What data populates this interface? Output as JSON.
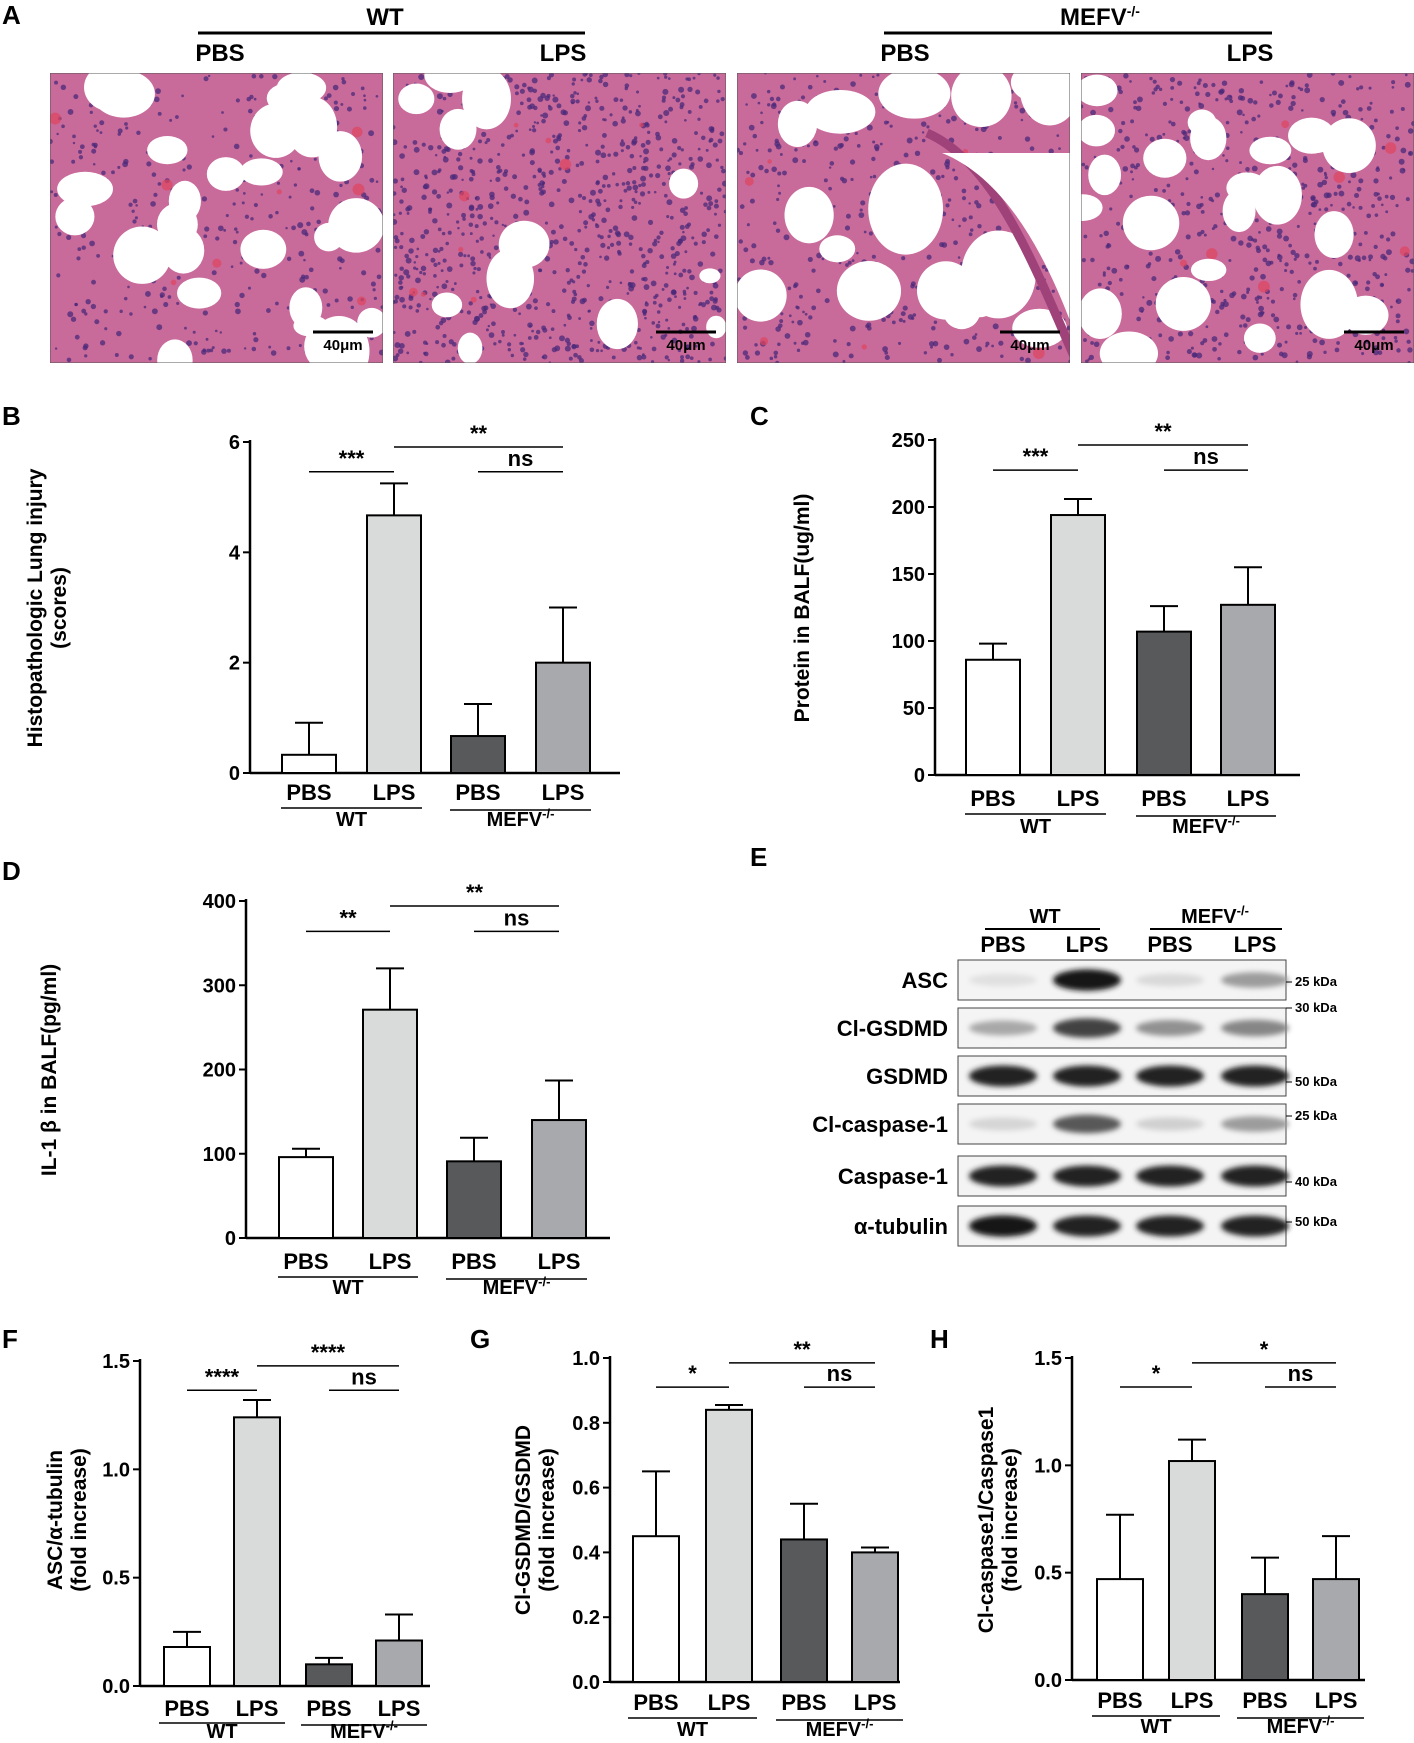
{
  "panel_a": {
    "label": "A",
    "group_left": "WT",
    "group_right": "MEFV",
    "group_right_sup": "-/-",
    "images": [
      {
        "label": "PBS",
        "scale": "40μm"
      },
      {
        "label": "LPS",
        "scale": "40μm"
      },
      {
        "label": "PBS",
        "scale": "40μm"
      },
      {
        "label": "LPS",
        "scale": "40μm"
      }
    ],
    "colors": {
      "tissue": "#c86a9a",
      "nuclei": "#4a2a7a",
      "airspace": "#ffffff",
      "blood": "#e0445c"
    }
  },
  "panel_e": {
    "label": "E",
    "group_left": "WT",
    "group_right": "MEFV",
    "group_right_sup": "-/-",
    "lanes": [
      "PBS",
      "LPS",
      "PBS",
      "LPS"
    ],
    "blots": [
      {
        "name": "ASC",
        "kda": "25 kDa",
        "intensity": [
          0.05,
          0.95,
          0.08,
          0.35
        ]
      },
      {
        "name": "Cl-GSDMD",
        "kda": "30 kDa",
        "intensity": [
          0.3,
          0.75,
          0.4,
          0.45
        ]
      },
      {
        "name": "GSDMD",
        "kda": "50 kDa",
        "intensity": [
          0.9,
          0.9,
          0.9,
          0.9
        ]
      },
      {
        "name": "Cl-caspase-1",
        "kda": "25 kDa",
        "intensity": [
          0.1,
          0.65,
          0.12,
          0.35
        ]
      },
      {
        "name": "Caspase-1",
        "kda": "40 kDa",
        "intensity": [
          0.9,
          0.9,
          0.9,
          0.9
        ]
      },
      {
        "name": "α-tubulin",
        "kda": "50 kDa",
        "intensity": [
          0.95,
          0.9,
          0.9,
          0.9
        ]
      }
    ]
  },
  "bar_colors": [
    "#ffffff",
    "#d9dbdb",
    "#58595b",
    "#a7a9ac"
  ],
  "chart_data": [
    {
      "panel": "B",
      "type": "bar",
      "ylabel": "Histopathologic Lung injury\n(scores)",
      "categories": [
        "PBS",
        "LPS",
        "PBS",
        "LPS"
      ],
      "groups": [
        "WT",
        "MEFV"
      ],
      "group_sup": "-/-",
      "values": [
        0.33,
        4.67,
        0.67,
        2.0
      ],
      "errors": [
        0.58,
        0.58,
        0.58,
        1.0
      ],
      "ylim": [
        0,
        6
      ],
      "yticks": [
        "0",
        "2",
        "4",
        "6"
      ],
      "significance": [
        {
          "from": 0,
          "to": 1,
          "label": "***"
        },
        {
          "from": 1,
          "to": 3,
          "label": "**"
        },
        {
          "from": 2,
          "to": 3,
          "label": "ns"
        }
      ]
    },
    {
      "panel": "C",
      "type": "bar",
      "ylabel": "Protein in BALF(ug/ml)",
      "categories": [
        "PBS",
        "LPS",
        "PBS",
        "LPS"
      ],
      "groups": [
        "WT",
        "MEFV"
      ],
      "group_sup": "-/-",
      "values": [
        86,
        194,
        107,
        127
      ],
      "errors": [
        12,
        12,
        19,
        28
      ],
      "ylim": [
        0,
        250
      ],
      "yticks": [
        "0",
        "50",
        "100",
        "150",
        "200",
        "250"
      ],
      "significance": [
        {
          "from": 0,
          "to": 1,
          "label": "***"
        },
        {
          "from": 1,
          "to": 3,
          "label": "**"
        },
        {
          "from": 2,
          "to": 3,
          "label": "ns"
        }
      ]
    },
    {
      "panel": "D",
      "type": "bar",
      "ylabel": "IL-1 β in BALF(pg/ml)",
      "categories": [
        "PBS",
        "LPS",
        "PBS",
        "LPS"
      ],
      "groups": [
        "WT",
        "MEFV"
      ],
      "group_sup": "-/-",
      "values": [
        96,
        271,
        91,
        140
      ],
      "errors": [
        10,
        49,
        28,
        47
      ],
      "ylim": [
        0,
        400
      ],
      "yticks": [
        "0",
        "100",
        "200",
        "300",
        "400"
      ],
      "significance": [
        {
          "from": 0,
          "to": 1,
          "label": "**"
        },
        {
          "from": 1,
          "to": 3,
          "label": "**"
        },
        {
          "from": 2,
          "to": 3,
          "label": "ns"
        }
      ]
    },
    {
      "panel": "F",
      "type": "bar",
      "ylabel": "ASC/α-tubulin\n(fold increase)",
      "categories": [
        "PBS",
        "LPS",
        "PBS",
        "LPS"
      ],
      "groups": [
        "WT",
        "MEFV"
      ],
      "group_sup": "-/-",
      "values": [
        0.18,
        1.24,
        0.1,
        0.21
      ],
      "errors": [
        0.07,
        0.08,
        0.03,
        0.12
      ],
      "ylim": [
        0,
        1.5
      ],
      "yticks": [
        "0.0",
        "0.5",
        "1.0",
        "1.5"
      ],
      "significance": [
        {
          "from": 0,
          "to": 1,
          "label": "****"
        },
        {
          "from": 1,
          "to": 3,
          "label": "****"
        },
        {
          "from": 2,
          "to": 3,
          "label": "ns"
        }
      ]
    },
    {
      "panel": "G",
      "type": "bar",
      "ylabel": "Cl-GSDMD/GSDMD\n(fold increase)",
      "categories": [
        "PBS",
        "LPS",
        "PBS",
        "LPS"
      ],
      "groups": [
        "WT",
        "MEFV"
      ],
      "group_sup": "-/-",
      "values": [
        0.45,
        0.84,
        0.44,
        0.4
      ],
      "errors": [
        0.2,
        0.015,
        0.11,
        0.015
      ],
      "ylim": [
        0,
        1.0
      ],
      "yticks": [
        "0.0",
        "0.2",
        "0.4",
        "0.6",
        "0.8",
        "1.0"
      ],
      "significance": [
        {
          "from": 0,
          "to": 1,
          "label": "*"
        },
        {
          "from": 1,
          "to": 3,
          "label": "**"
        },
        {
          "from": 2,
          "to": 3,
          "label": "ns"
        }
      ]
    },
    {
      "panel": "H",
      "type": "bar",
      "ylabel": "Cl-caspase1/Caspase1\n(fold increase)",
      "categories": [
        "PBS",
        "LPS",
        "PBS",
        "LPS"
      ],
      "groups": [
        "WT",
        "MEFV"
      ],
      "group_sup": "-/-",
      "values": [
        0.47,
        1.02,
        0.4,
        0.47
      ],
      "errors": [
        0.3,
        0.1,
        0.17,
        0.2
      ],
      "ylim": [
        0,
        1.5
      ],
      "yticks": [
        "0.0",
        "0.5",
        "1.0",
        "1.5"
      ],
      "significance": [
        {
          "from": 0,
          "to": 1,
          "label": "*"
        },
        {
          "from": 1,
          "to": 3,
          "label": "*"
        },
        {
          "from": 2,
          "to": 3,
          "label": "ns"
        }
      ]
    }
  ]
}
